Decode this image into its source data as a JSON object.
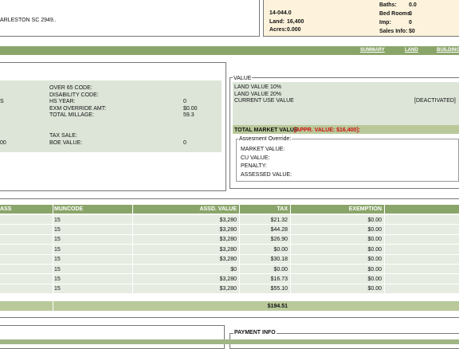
{
  "header": {
    "address": "ARLESTON SC 2949..",
    "parcel": "14-044.0",
    "left_items": [
      {
        "label": "Land:",
        "value": "16,400"
      },
      {
        "label": "Acres:",
        "value": "0.000"
      }
    ],
    "right_items": [
      {
        "label": "Baths:",
        "value": "0.0"
      },
      {
        "label": "Bed Rooms:",
        "value": "0"
      },
      {
        "label": "Imp:",
        "value": "0"
      },
      {
        "label": "Sales Info:",
        "value": "$0"
      }
    ]
  },
  "nav": [
    "SUMMARY",
    "LAND",
    "BUILDING"
  ],
  "exemptions": {
    "cut_text": [
      "S",
      "00"
    ],
    "items": [
      {
        "label": "OVER 65 CODE:"
      },
      {
        "label": "DISABILITY CODE:"
      },
      {
        "label": "HS YEAR:",
        "value": "0"
      },
      {
        "label": "EXM OVERRIDE AMT:",
        "value": "$0.00"
      },
      {
        "label": "TOTAL MILLAGE:",
        "value": "59.3"
      },
      {
        "label": "TAX SALE:"
      },
      {
        "label": "BOE VALUE:",
        "value": "0"
      }
    ]
  },
  "value_box": {
    "legend": "VALUE",
    "lines": [
      "LAND VALUE 10%",
      "LAND VALUE 20%",
      "CURRENT USE VALUE"
    ],
    "status": "[DEACTIVATED]",
    "total_label": "TOTAL MARKET VALUE",
    "appraised": "[APPR. VALUE: $16,400]:",
    "override_legend": "Assesment Override:",
    "override_items": [
      "MARKET VALUE:",
      "CU VALUE:",
      "PENALTY:",
      "ASSESSED VALUE:"
    ]
  },
  "table": {
    "columns": [
      "ASS",
      "MUNCODE",
      "ASSD. VALUE",
      "TAX",
      "EXEMPTION"
    ],
    "rows": [
      [
        "15",
        "$3,280",
        "$21.32",
        "$0.00"
      ],
      [
        "15",
        "$3,280",
        "$44.28",
        "$0.00"
      ],
      [
        "15",
        "$3,280",
        "$26.90",
        "$0.00"
      ],
      [
        "15",
        "$3,280",
        "$0.00",
        "$0.00"
      ],
      [
        "15",
        "$3,280",
        "$30.18",
        "$0.00"
      ],
      [
        "15",
        "$0",
        "$0.00",
        "$0.00"
      ],
      [
        "15",
        "$3,280",
        "$16.73",
        "$0.00"
      ],
      [
        "15",
        "$3,280",
        "$55.10",
        "$0.00"
      ]
    ],
    "total": "$194.51"
  },
  "payment": {
    "legend": "PAYMENT INFO"
  }
}
